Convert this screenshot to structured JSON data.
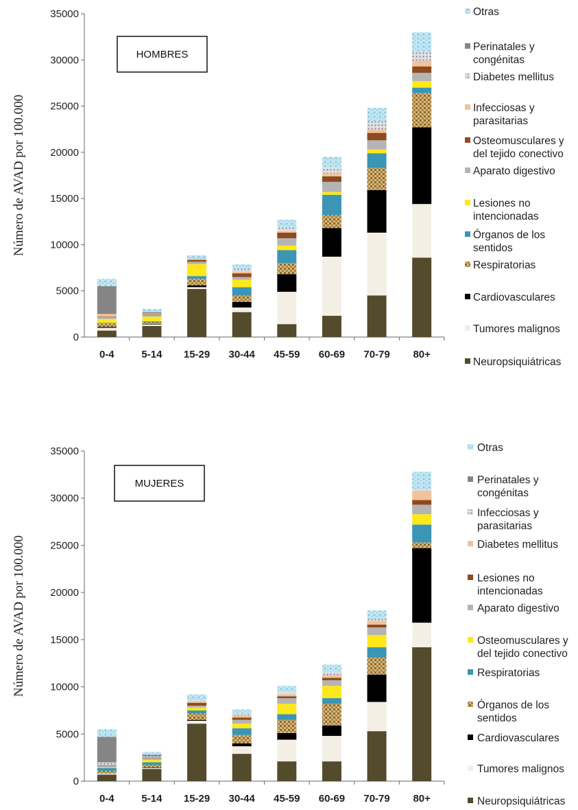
{
  "chart_data": [
    {
      "type": "bar",
      "stacked": true,
      "title": "HOMBRES",
      "ylabel": "Número de AVAD por 100.000",
      "ylim": [
        0,
        35000
      ],
      "yticks": [
        0,
        5000,
        10000,
        15000,
        20000,
        25000,
        30000,
        35000
      ],
      "categories": [
        "0-4",
        "5-14",
        "15-29",
        "30-44",
        "45-59",
        "60-69",
        "70-79",
        "80+"
      ],
      "series": [
        {
          "name": "Neuropsiquiátricas",
          "color": "#544a2c",
          "values": [
            700,
            1200,
            5200,
            2700,
            1400,
            2300,
            4500,
            8600
          ]
        },
        {
          "name": "Tumores malignos",
          "color": "#f3efe5",
          "values": [
            300,
            150,
            200,
            500,
            3500,
            6400,
            6800,
            5800
          ]
        },
        {
          "name": "Cardiovasculares",
          "color": "#000000",
          "values": [
            100,
            50,
            200,
            600,
            1900,
            3100,
            4600,
            8300
          ]
        },
        {
          "name": "Respiratorias",
          "color": "#c59a4e",
          "values": [
            400,
            200,
            700,
            700,
            1200,
            1400,
            2400,
            3700
          ]
        },
        {
          "name": "Órganos de los sentidos",
          "color": "#3b95b5",
          "values": [
            50,
            100,
            300,
            900,
            1400,
            2200,
            1600,
            600
          ]
        },
        {
          "name": "Lesiones no intencionadas",
          "color": "#ffe81a",
          "values": [
            400,
            500,
            1300,
            800,
            500,
            300,
            400,
            700
          ]
        },
        {
          "name": "Aparato digestivo",
          "color": "#b4b4b4",
          "values": [
            200,
            200,
            250,
            300,
            800,
            1100,
            1000,
            900
          ]
        },
        {
          "name": "Osteomusculares y del tejido conectivo",
          "color": "#8e4b1f",
          "values": [
            50,
            50,
            200,
            400,
            600,
            600,
            800,
            700
          ]
        },
        {
          "name": "Infecciosas y parasitarias",
          "color": "#f2c29a",
          "values": [
            300,
            100,
            100,
            200,
            200,
            300,
            400,
            600
          ]
        },
        {
          "name": "Diabetes mellitus",
          "color": "#c6c9d1",
          "values": [
            0,
            0,
            50,
            300,
            400,
            700,
            900,
            1000
          ]
        },
        {
          "name": "Perinatales y congénitas",
          "color": "#858585",
          "values": [
            3000,
            150,
            0,
            0,
            0,
            0,
            0,
            0
          ]
        },
        {
          "name": "Otras",
          "color": "#a6d8ea",
          "values": [
            800,
            350,
            350,
            450,
            800,
            1100,
            1400,
            2100
          ]
        }
      ]
    },
    {
      "type": "bar",
      "stacked": true,
      "title": "MUJERES",
      "ylabel": "Número de AVAD por 100.000",
      "ylim": [
        0,
        35000
      ],
      "yticks": [
        0,
        5000,
        10000,
        15000,
        20000,
        25000,
        30000,
        35000
      ],
      "categories": [
        "0-4",
        "5-14",
        "15-29",
        "30-44",
        "45-59",
        "60-69",
        "70-79",
        "80+"
      ],
      "series": [
        {
          "name": "Neuropsiquiátricas",
          "color": "#544a2c",
          "values": [
            700,
            1300,
            6100,
            2900,
            2100,
            2100,
            5300,
            14200
          ]
        },
        {
          "name": "Tumores malignos",
          "color": "#f3efe5",
          "values": [
            100,
            100,
            300,
            800,
            2300,
            2700,
            3100,
            2600
          ]
        },
        {
          "name": "Cardiovasculares",
          "color": "#000000",
          "values": [
            0,
            50,
            100,
            300,
            700,
            1100,
            2900,
            7900
          ]
        },
        {
          "name": "Órganos de los sentidos",
          "color": "#c59a4e",
          "values": [
            300,
            250,
            700,
            900,
            1400,
            2300,
            1800,
            600
          ]
        },
        {
          "name": "Respiratorias",
          "color": "#3b95b5",
          "values": [
            300,
            300,
            300,
            700,
            600,
            600,
            1100,
            1900
          ]
        },
        {
          "name": "Osteomusculares y del tejido conectivo",
          "color": "#ffe81a",
          "values": [
            50,
            250,
            300,
            500,
            1100,
            1300,
            1300,
            1100
          ]
        },
        {
          "name": "Aparato digestivo",
          "color": "#b4b4b4",
          "values": [
            200,
            200,
            200,
            400,
            600,
            600,
            800,
            1000
          ]
        },
        {
          "name": "Lesiones no intencionadas",
          "color": "#8e4b1f",
          "values": [
            50,
            50,
            300,
            250,
            200,
            250,
            300,
            500
          ]
        },
        {
          "name": "Diabetes mellitus",
          "color": "#f2c29a",
          "values": [
            0,
            50,
            150,
            200,
            200,
            300,
            400,
            1000
          ]
        },
        {
          "name": "Infecciosas y parasitarias",
          "color": "#c6c9d1",
          "values": [
            300,
            100,
            100,
            150,
            200,
            300,
            200,
            100
          ]
        },
        {
          "name": "Perinatales y congénitas",
          "color": "#858585",
          "values": [
            2700,
            150,
            0,
            0,
            0,
            0,
            0,
            0
          ]
        },
        {
          "name": "Otras",
          "color": "#a6d8ea",
          "values": [
            800,
            300,
            650,
            500,
            700,
            800,
            900,
            1900
          ]
        }
      ]
    }
  ],
  "legends": [
    {
      "lines": [
        [
          "Otras"
        ],
        [
          "Perinatales y",
          "congénitas"
        ],
        [
          "Diabetes mellitus"
        ],
        [
          "Infecciosas y",
          "parasitarias"
        ],
        [
          "Osteomusculares y",
          "del tejido conectivo"
        ],
        [
          "Aparato digestivo"
        ],
        [
          "Lesiones no",
          "intencionadas"
        ],
        [
          "Órganos de los",
          "sentidos"
        ],
        [
          "Respiratorias"
        ],
        [
          "Cardiovasculares"
        ],
        [
          "Tumores malignos"
        ],
        [
          "Neuropsiquiátricas"
        ]
      ]
    },
    {
      "lines": [
        [
          "Otras"
        ],
        [
          "Perinatales y",
          "congénitas"
        ],
        [
          "Infecciosas y",
          "parasitarias"
        ],
        [
          "Diabetes mellitus"
        ],
        [
          "Lesiones no",
          "intencionadas"
        ],
        [
          "Aparato digestivo"
        ],
        [
          "Osteomusculares y",
          "del tejido conectivo"
        ],
        [
          "Respiratorias"
        ],
        [
          "Órganos de los",
          "sentidos"
        ],
        [
          "Cardiovasculares"
        ],
        [
          "Tumores malignos"
        ],
        [
          "Neuropsiquiátricas"
        ]
      ]
    }
  ]
}
